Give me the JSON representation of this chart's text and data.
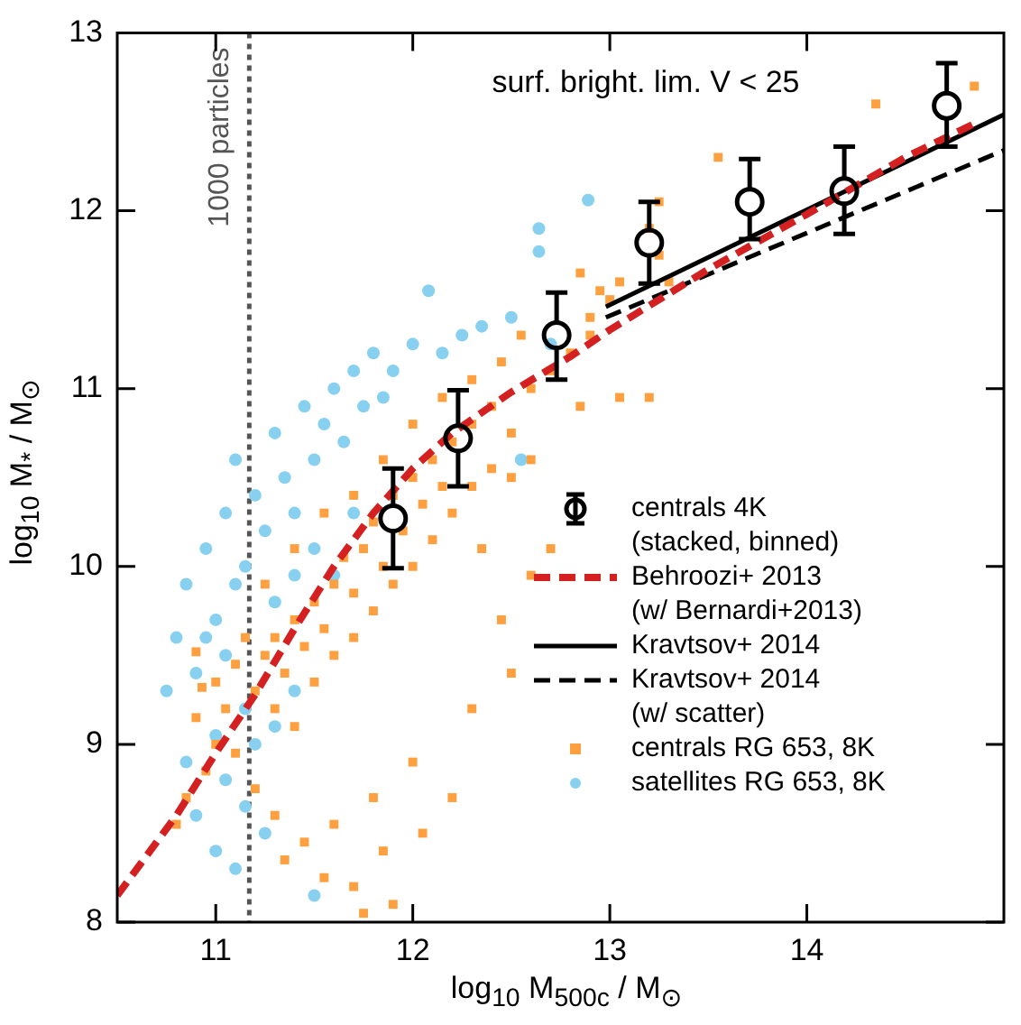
{
  "chart_data": {
    "type": "scatter",
    "xlabel": "log$_{10}$ M$_{500c}$ / M$_{⊙}$",
    "ylabel": "log$_{10}$ M$_{*}$ / M$_{⊙}$",
    "xlim": [
      10.5,
      15
    ],
    "ylim": [
      8,
      13
    ],
    "xticks": [
      11,
      12,
      13,
      14
    ],
    "yticks": [
      8,
      9,
      10,
      11,
      12,
      13
    ],
    "grid": false,
    "legend": "bottom right",
    "annotations": [
      "surf. bright. lim. V < 25"
    ],
    "ref_lines": [
      {
        "axis": "x",
        "value": 11.17,
        "label": "1000 particles",
        "color": "#555555",
        "line_style": "dotted"
      }
    ],
    "series": [
      {
        "name": "centrals 4K\n(stacked, binned)",
        "type": "scatter",
        "marker": "circle",
        "color": "#000000",
        "x": [
          11.9,
          12.23,
          12.73,
          13.2,
          13.71,
          14.19,
          14.71
        ],
        "values": [
          10.27,
          10.72,
          11.3,
          11.82,
          12.05,
          12.11,
          12.59
        ],
        "errors": [
          [
            9.99,
            10.55
          ],
          [
            10.45,
            10.99
          ],
          [
            11.05,
            11.54
          ],
          [
            11.59,
            12.05
          ],
          [
            11.84,
            12.29
          ],
          [
            11.87,
            12.36
          ],
          [
            12.36,
            12.83
          ]
        ]
      },
      {
        "name": "Behroozi+ 2013\n(w/ Bernardi+2013)",
        "type": "line",
        "marker": "none",
        "line_style": "dashed",
        "color": "#d42020",
        "x": [
          10.5,
          10.8,
          11.0,
          11.2,
          11.4,
          11.6,
          11.8,
          12.0,
          12.2,
          12.5,
          12.8,
          13.0,
          13.5,
          14.0,
          14.5,
          14.87
        ],
        "values": [
          8.15,
          8.6,
          8.95,
          9.28,
          9.65,
          10.0,
          10.3,
          10.55,
          10.75,
          10.98,
          11.18,
          11.33,
          11.67,
          11.98,
          12.3,
          12.5
        ]
      },
      {
        "name": "Kravtsov+ 2014",
        "type": "line",
        "marker": "none",
        "line_style": "solid",
        "color": "#000000",
        "x": [
          12.98,
          15
        ],
        "values": [
          11.46,
          12.54
        ]
      },
      {
        "name": "Kravtsov+ 2014\n(w/ scatter)",
        "type": "line",
        "marker": "none",
        "line_style": "dashed",
        "color": "#000000",
        "x": [
          12.98,
          15
        ],
        "values": [
          11.4,
          12.34
        ]
      },
      {
        "name": "centrals RG 653, 8K",
        "type": "scatter",
        "marker": "square",
        "color": "#ffa040",
        "x": [
          11.2,
          11.25,
          11.3,
          11.35,
          11.4,
          11.45,
          11.5,
          11.55,
          11.6,
          11.65,
          11.7,
          11.75,
          11.8,
          11.85,
          11.9,
          11.95,
          12.0,
          12.05,
          12.1,
          12.15,
          12.2,
          12.3,
          12.4,
          12.5,
          12.6,
          12.7,
          12.8,
          12.9,
          11.3,
          11.4,
          11.5,
          11.6,
          11.7,
          11.8,
          11.9,
          12.0,
          12.1,
          12.2,
          12.3,
          12.4,
          12.5,
          12.6,
          11.25,
          11.4,
          11.55,
          11.7,
          11.85,
          12.0,
          12.15,
          12.3,
          12.45,
          12.55,
          11.15,
          11.1,
          11.05,
          11.0,
          10.95,
          10.85,
          10.8,
          10.9,
          11.0,
          11.1,
          11.2,
          11.3,
          11.35,
          11.45,
          11.55,
          11.6,
          11.7,
          11.75,
          11.85,
          11.9,
          11.8,
          12.0,
          12.05,
          12.2,
          12.3,
          12.5,
          12.45,
          12.6,
          12.7,
          12.35,
          12.9,
          12.95,
          12.85,
          13.0,
          13.05,
          13.2,
          13.25,
          13.3,
          13.25,
          13.55,
          13.05,
          13.2,
          12.85,
          14.35,
          14.85,
          10.9,
          10.93
        ],
        "values": [
          9.3,
          9.5,
          9.6,
          9.4,
          9.7,
          9.55,
          9.8,
          9.65,
          9.9,
          10.05,
          9.85,
          10.1,
          10.25,
          10.0,
          10.4,
          10.2,
          10.5,
          10.35,
          10.6,
          10.45,
          10.7,
          10.8,
          10.9,
          10.75,
          11.0,
          11.1,
          11.2,
          11.3,
          9.2,
          9.1,
          9.35,
          9.5,
          9.6,
          9.75,
          9.9,
          10.0,
          10.15,
          10.3,
          10.45,
          10.55,
          10.5,
          10.6,
          9.9,
          10.1,
          10.3,
          10.4,
          10.6,
          10.8,
          10.95,
          11.05,
          11.15,
          11.3,
          9.6,
          9.45,
          9.2,
          9.0,
          8.85,
          8.7,
          8.55,
          9.15,
          9.35,
          8.95,
          8.75,
          8.6,
          8.35,
          8.45,
          8.25,
          8.55,
          8.2,
          8.05,
          8.4,
          8.1,
          8.7,
          8.9,
          8.5,
          8.7,
          9.2,
          9.4,
          9.7,
          9.95,
          10.1,
          10.1,
          11.4,
          11.55,
          11.65,
          11.5,
          11.6,
          11.9,
          11.75,
          11.6,
          12.05,
          12.3,
          10.95,
          10.95,
          10.9,
          12.6,
          12.7,
          9.52,
          9.32
        ]
      },
      {
        "name": "satellites RG 653, 8K",
        "type": "scatter",
        "marker": "circle",
        "color": "#88d0f0",
        "x": [
          10.75,
          10.8,
          10.85,
          10.9,
          10.95,
          11.0,
          11.05,
          11.1,
          11.1,
          11.15,
          11.2,
          11.25,
          11.3,
          11.35,
          11.4,
          11.45,
          11.5,
          11.55,
          11.6,
          11.65,
          11.7,
          11.75,
          11.8,
          11.85,
          11.9,
          12.0,
          12.08,
          12.15,
          12.25,
          12.35,
          12.64,
          12.64,
          12.89,
          12.5,
          10.85,
          10.9,
          11.0,
          11.05,
          11.1,
          11.15,
          11.2,
          11.25,
          11.3,
          11.4,
          11.0,
          10.95,
          11.05,
          11.15,
          11.5,
          11.6,
          11.7,
          11.5,
          11.3,
          11.4,
          12.55,
          12.7
        ],
        "values": [
          9.3,
          9.6,
          9.9,
          9.4,
          10.1,
          9.7,
          10.3,
          9.9,
          10.6,
          10.0,
          10.4,
          10.2,
          10.75,
          10.5,
          10.3,
          10.9,
          10.6,
          10.8,
          11.0,
          10.7,
          11.1,
          10.9,
          11.2,
          10.95,
          11.1,
          11.25,
          11.55,
          11.2,
          11.3,
          11.35,
          11.9,
          11.77,
          12.06,
          11.4,
          8.9,
          8.6,
          8.4,
          8.8,
          8.3,
          8.65,
          9.0,
          8.5,
          9.1,
          9.3,
          9.05,
          9.6,
          9.5,
          9.2,
          8.15,
          9.95,
          10.3,
          10.1,
          9.8,
          9.95,
          10.6,
          11.25
        ]
      }
    ]
  }
}
